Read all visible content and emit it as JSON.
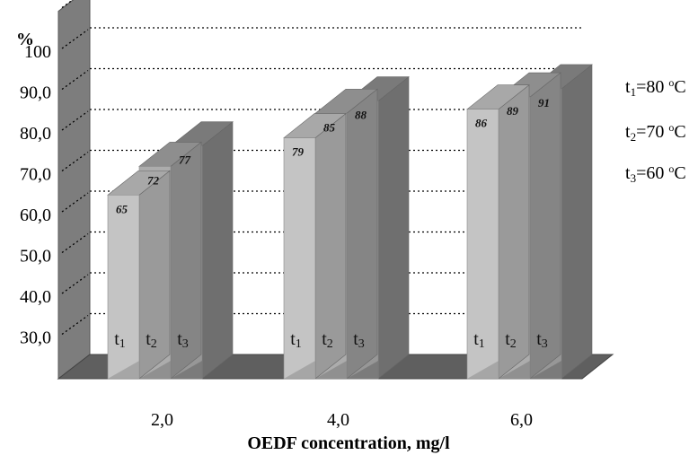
{
  "chart_data": {
    "type": "bar",
    "ylabel": "%",
    "xlabel": "OEDF concentration, mg/l",
    "categories": [
      "2,0",
      "4,0",
      "6,0"
    ],
    "y_ticks": [
      "30,0",
      "40,0",
      "50,0",
      "60,0",
      "70,0",
      "80,0",
      "90,0",
      "100"
    ],
    "ylim": [
      20,
      110
    ],
    "series": [
      {
        "name": "t1",
        "values": [
          65,
          79,
          86
        ],
        "value_labels": [
          "65",
          "79",
          "86"
        ],
        "bar_label_base": "t",
        "bar_label_sub": "1",
        "color": "#c4c4c4"
      },
      {
        "name": "t2",
        "values": [
          72,
          85,
          89
        ],
        "value_labels": [
          "72",
          "85",
          "89"
        ],
        "bar_label_base": "t",
        "bar_label_sub": "2",
        "color": "#acacac"
      },
      {
        "name": "t3",
        "values": [
          77,
          88,
          91
        ],
        "value_labels": [
          "77",
          "88",
          "91"
        ],
        "bar_label_base": "t",
        "bar_label_sub": "3",
        "color": "#979797"
      }
    ],
    "legend": [
      {
        "base": "t",
        "sub": "1",
        "rest": "=80 ",
        "sup": "o",
        "unit": "C"
      },
      {
        "base": "t",
        "sub": "2",
        "rest": "=70 ",
        "sup": "o",
        "unit": "C"
      },
      {
        "base": "t",
        "sub": "3",
        "rest": "=60 ",
        "sup": "o",
        "unit": "C"
      }
    ],
    "legend_position": "right",
    "grid": true,
    "style": "3d"
  }
}
